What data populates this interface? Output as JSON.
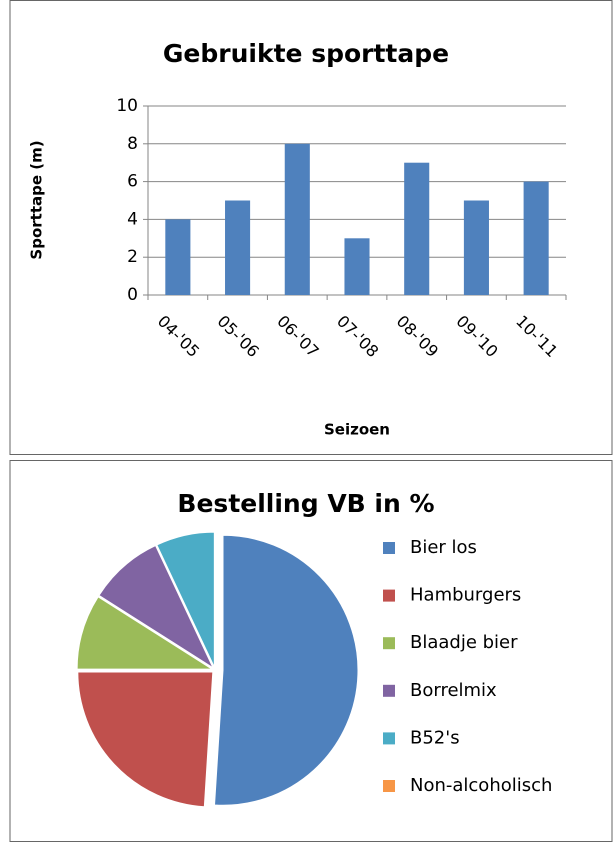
{
  "chart_data": [
    {
      "type": "bar",
      "title": "Gebruikte sporttape",
      "x_label": "Seizoen",
      "y_label": "Sporttape (m)",
      "categories": [
        "04-'05",
        "05-'06",
        "06-'07",
        "07-'08",
        "08-'09",
        "09-'10",
        "10-'11"
      ],
      "values": [
        4,
        5,
        8,
        3,
        7,
        5,
        6
      ],
      "color": "#4f81bd",
      "ylim": [
        0,
        10
      ],
      "yticks": [
        0,
        2,
        4,
        6,
        8,
        10
      ],
      "grid": true
    },
    {
      "type": "pie",
      "title": "Bestelling VB in %",
      "legend": "right",
      "categories": [
        "Bier los",
        "Hamburgers",
        "Blaadje bier",
        "Borrelmix",
        "B52's",
        "Non-alcoholisch"
      ],
      "values": [
        51,
        24,
        9,
        9,
        7,
        0
      ],
      "colors": [
        "#4f81bd",
        "#c0504d",
        "#9bbb59",
        "#8064a2",
        "#4bacc6",
        "#f79646"
      ]
    }
  ]
}
